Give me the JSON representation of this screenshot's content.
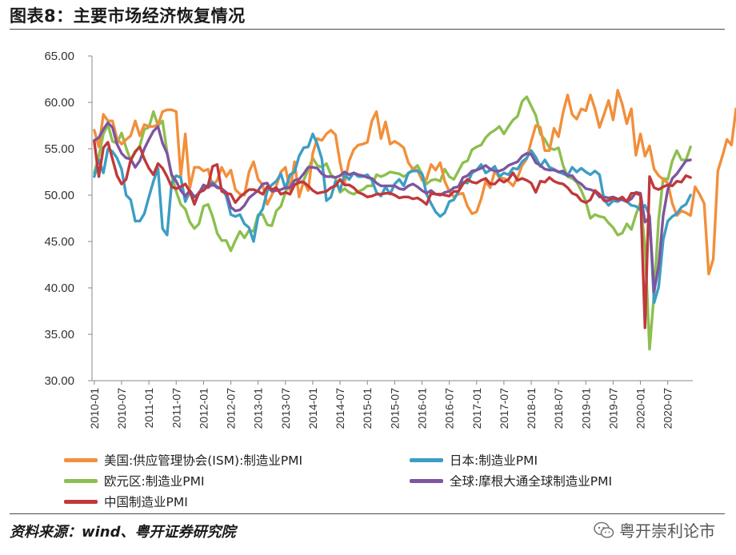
{
  "header": {
    "title": "图表8：主要市场经济恢复情况"
  },
  "footer": {
    "source": "资料来源：wind、粤开证券研究院",
    "watermark": "粤开崇利论市"
  },
  "icons": {
    "watermark_icon": "wechat-icon"
  },
  "chart_data": {
    "type": "line",
    "title": "",
    "xlabel": "",
    "ylabel": "",
    "ylim": [
      30,
      65
    ],
    "yticks": [
      "65.00",
      "60.00",
      "55.00",
      "50.00",
      "45.00",
      "40.00",
      "35.00",
      "30.00"
    ],
    "ytick_values": [
      65,
      60,
      55,
      50,
      45,
      40,
      35,
      30
    ],
    "xticks": [
      "2010-01",
      "2010-07",
      "2011-01",
      "2011-07",
      "2012-01",
      "2012-07",
      "2013-01",
      "2013-07",
      "2014-01",
      "2014-07",
      "2015-01",
      "2015-07",
      "2016-01",
      "2016-07",
      "2017-01",
      "2017-07",
      "2018-01",
      "2018-07",
      "2019-01",
      "2019-07",
      "2020-01",
      "2020-07"
    ],
    "x_start": "2010-01",
    "x_end": "2020-12",
    "grid": false,
    "legend_position": "bottom",
    "series": [
      {
        "name": "美国:供应管理协会(ISM):制造业PMI",
        "color": "#F28F3B",
        "values": [
          57.0,
          55.2,
          58.7,
          58.0,
          58.0,
          56.1,
          55.5,
          56.0,
          56.4,
          58.0,
          56.4,
          57.6,
          57.4,
          57.4,
          57.6,
          59.0,
          59.2,
          59.2,
          59.0,
          52.0,
          56.6,
          50.8,
          53.0,
          53.0,
          52.6,
          52.8,
          51.0,
          51.6,
          53.0,
          52.0,
          52.7,
          50.6,
          50.1,
          50.0,
          52.5,
          53.6,
          51.7,
          51.1,
          49.0,
          50.0,
          51.0,
          52.5,
          53.0,
          50.5,
          53.6,
          49.8,
          51.5,
          50.5,
          54.5,
          56.1,
          55.9,
          56.6,
          57.0,
          56.5,
          53.5,
          51.3,
          53.7,
          54.9,
          55.4,
          55.5,
          55.7,
          58.0,
          59.0,
          56.1,
          57.9,
          55.5,
          55.8,
          55.5,
          55.1,
          53.5,
          52.8,
          52.7,
          51.6,
          51.7,
          53.3,
          52.7,
          53.5,
          51.5,
          50.4,
          49.8,
          50.1,
          50.2,
          48.8,
          48.0,
          48.2,
          49.6,
          51.5,
          50.8,
          52.6,
          51.9,
          51.8,
          51.5,
          51.0,
          51.9,
          53.2,
          53.9,
          55.8,
          57.5,
          57.3,
          54.8,
          54.8,
          57.2,
          56.3,
          58.9,
          60.8,
          58.7,
          58.2,
          59.3,
          59.1,
          60.8,
          59.3,
          57.3,
          58.7,
          60.2,
          58.1,
          61.3,
          59.8,
          57.7,
          59.3,
          54.3,
          56.6,
          54.2,
          55.3,
          52.8,
          52.1,
          51.7,
          51.3,
          49.1,
          47.8,
          48.3,
          48.1,
          47.8,
          50.9,
          50.1,
          49.1,
          41.5,
          43.1,
          52.6,
          54.2,
          56.0,
          55.4,
          59.3,
          57.5,
          60.7
        ]
      },
      {
        "name": "日本:制造业PMI",
        "color": "#3C9EC4",
        "values": [
          52.0,
          53.8,
          52.4,
          55.0,
          54.7,
          54.0,
          52.8,
          50.0,
          49.5,
          47.2,
          47.2,
          48.0,
          49.8,
          51.5,
          52.9,
          46.4,
          45.7,
          51.3,
          52.1,
          51.9,
          49.3,
          50.4,
          49.1,
          50.2,
          50.7,
          51.1,
          51.4,
          50.9,
          50.7,
          49.9,
          47.9,
          47.7,
          47.9,
          46.9,
          46.5,
          45.0,
          47.7,
          48.5,
          50.4,
          51.1,
          51.5,
          52.3,
          50.7,
          52.2,
          52.5,
          54.2,
          55.1,
          55.2,
          56.6,
          55.5,
          53.9,
          49.4,
          49.8,
          51.5,
          50.5,
          52.2,
          51.7,
          52.4,
          52.0,
          52.0,
          52.2,
          51.6,
          50.3,
          49.9,
          50.9,
          50.1,
          51.2,
          51.7,
          51.0,
          52.4,
          52.6,
          52.6,
          52.3,
          50.1,
          49.1,
          48.2,
          47.7,
          48.1,
          49.3,
          49.5,
          50.4,
          51.4,
          51.3,
          52.4,
          52.7,
          53.3,
          52.4,
          52.7,
          53.1,
          52.0,
          52.4,
          52.2,
          52.9,
          52.8,
          53.6,
          54.0,
          54.8,
          54.1,
          53.1,
          53.8,
          53.0,
          52.8,
          52.5,
          52.3,
          52.1,
          53.0,
          52.5,
          52.9,
          52.5,
          52.2,
          52.6,
          52.2,
          49.5,
          48.9,
          49.4,
          49.3,
          49.6,
          49.3,
          48.9,
          48.8,
          48.4,
          48.9,
          47.8,
          38.4,
          40.1,
          45.2,
          47.2,
          47.7,
          48.0,
          48.7,
          49.0,
          50.0
        ]
      },
      {
        "name": "欧元区:制造业PMI",
        "color": "#8DBF4F",
        "values": [
          52.4,
          54.2,
          56.6,
          57.6,
          55.8,
          55.6,
          56.7,
          55.1,
          53.7,
          54.6,
          55.3,
          57.1,
          57.3,
          59.0,
          57.5,
          58.0,
          54.6,
          52.1,
          50.4,
          49.0,
          48.5,
          47.1,
          46.4,
          46.9,
          48.8,
          49.0,
          47.7,
          45.9,
          45.1,
          45.1,
          44.0,
          45.1,
          46.1,
          45.4,
          46.2,
          46.1,
          47.9,
          47.9,
          46.8,
          46.7,
          48.3,
          48.8,
          50.3,
          51.4,
          51.1,
          51.3,
          51.6,
          52.7,
          54.0,
          53.2,
          53.0,
          53.4,
          52.2,
          51.8,
          50.3,
          50.7,
          50.3,
          50.1,
          50.4,
          50.6,
          51.0,
          51.0,
          52.2,
          52.0,
          52.2,
          52.5,
          52.4,
          52.3,
          52.0,
          52.3,
          52.8,
          53.2,
          52.3,
          51.2,
          51.6,
          51.7,
          51.5,
          52.8,
          52.0,
          51.7,
          52.6,
          53.5,
          53.7,
          54.9,
          55.2,
          55.4,
          56.2,
          56.7,
          57.0,
          57.4,
          56.6,
          57.4,
          58.1,
          58.5,
          60.1,
          60.6,
          59.6,
          58.6,
          56.6,
          56.0,
          55.1,
          54.9,
          55.1,
          53.2,
          52.0,
          51.8,
          51.4,
          50.5,
          49.3,
          47.5,
          47.9,
          47.7,
          47.6,
          47.0,
          46.5,
          45.7,
          45.9,
          46.9,
          46.3,
          47.9,
          49.2,
          44.5,
          33.4,
          39.4,
          47.4,
          51.8,
          51.7,
          53.7,
          54.8,
          53.8,
          53.8,
          55.2
        ]
      },
      {
        "name": "全球:摩根大通全球制造业PMI",
        "color": "#7E55A0",
        "values": [
          55.9,
          56.2,
          57.1,
          57.8,
          57.3,
          55.5,
          54.5,
          54.0,
          53.9,
          53.0,
          53.7,
          55.0,
          56.0,
          56.9,
          57.4,
          55.6,
          54.5,
          52.2,
          51.5,
          50.5,
          49.9,
          50.5,
          49.8,
          50.2,
          51.1,
          50.8,
          51.2,
          50.8,
          50.7,
          50.3,
          48.7,
          48.3,
          48.4,
          48.9,
          49.7,
          50.1,
          50.5,
          51.2,
          51.3,
          50.4,
          50.5,
          50.6,
          50.8,
          50.8,
          51.6,
          51.7,
          52.3,
          53.0,
          53.0,
          52.9,
          52.3,
          52.0,
          52.0,
          51.9,
          52.1,
          52.5,
          52.2,
          52.4,
          52.2,
          52.1,
          51.9,
          51.8,
          51.3,
          51.0,
          51.0,
          51.0,
          51.0,
          50.7,
          50.6,
          51.0,
          51.2,
          50.9,
          50.5,
          50.2,
          50.5,
          50.1,
          50.0,
          50.3,
          50.4,
          50.8,
          50.9,
          51.9,
          52.1,
          52.6,
          52.7,
          52.9,
          53.2,
          52.8,
          52.6,
          52.6,
          52.8,
          53.2,
          53.4,
          53.6,
          54.2,
          54.5,
          54.4,
          53.5,
          53.2,
          52.8,
          52.7,
          52.7,
          52.5,
          52.6,
          52.1,
          52.1,
          51.5,
          51.2,
          50.7,
          50.6,
          50.4,
          49.8,
          49.8,
          49.7,
          49.8,
          49.6,
          49.5,
          49.3,
          49.6,
          50.3,
          50.2,
          47.1,
          47.6,
          39.6,
          42.4,
          47.8,
          50.6,
          51.8,
          52.3,
          53.0,
          53.7,
          53.8
        ]
      },
      {
        "name": "中国制造业PMI",
        "color": "#C0393B",
        "values": [
          55.8,
          52.0,
          55.1,
          55.7,
          53.9,
          52.1,
          51.2,
          51.7,
          53.8,
          54.7,
          55.2,
          53.9,
          52.9,
          52.2,
          53.4,
          52.9,
          52.0,
          50.9,
          50.7,
          50.9,
          51.2,
          50.4,
          49.0,
          50.3,
          50.5,
          51.0,
          53.1,
          53.3,
          50.4,
          50.2,
          50.1,
          49.2,
          49.8,
          50.2,
          50.6,
          50.6,
          50.4,
          50.1,
          50.9,
          50.6,
          50.8,
          50.1,
          50.3,
          50.1,
          51.1,
          51.4,
          51.4,
          51.0,
          50.5,
          50.2,
          50.3,
          50.4,
          50.8,
          51.0,
          51.7,
          51.1,
          51.1,
          50.8,
          50.3,
          50.1,
          49.8,
          49.9,
          50.1,
          50.1,
          50.2,
          50.2,
          50.0,
          49.7,
          49.8,
          49.8,
          49.6,
          49.7,
          49.4,
          49.0,
          50.2,
          50.1,
          50.1,
          50.0,
          49.9,
          50.4,
          50.4,
          51.2,
          51.7,
          51.4,
          51.3,
          51.6,
          51.8,
          51.2,
          51.2,
          51.7,
          51.4,
          51.7,
          52.4,
          51.6,
          51.8,
          51.6,
          51.3,
          50.3,
          51.5,
          51.4,
          51.9,
          51.5,
          51.3,
          51.2,
          50.8,
          50.2,
          50.0,
          49.4,
          49.2,
          49.5,
          50.5,
          50.1,
          49.4,
          49.4,
          49.7,
          49.5,
          49.8,
          49.3,
          50.2,
          50.2,
          50.0,
          35.7,
          52.0,
          50.8,
          50.6,
          50.9,
          51.1,
          51.0,
          51.5,
          51.4,
          52.1,
          51.9
        ]
      }
    ]
  }
}
